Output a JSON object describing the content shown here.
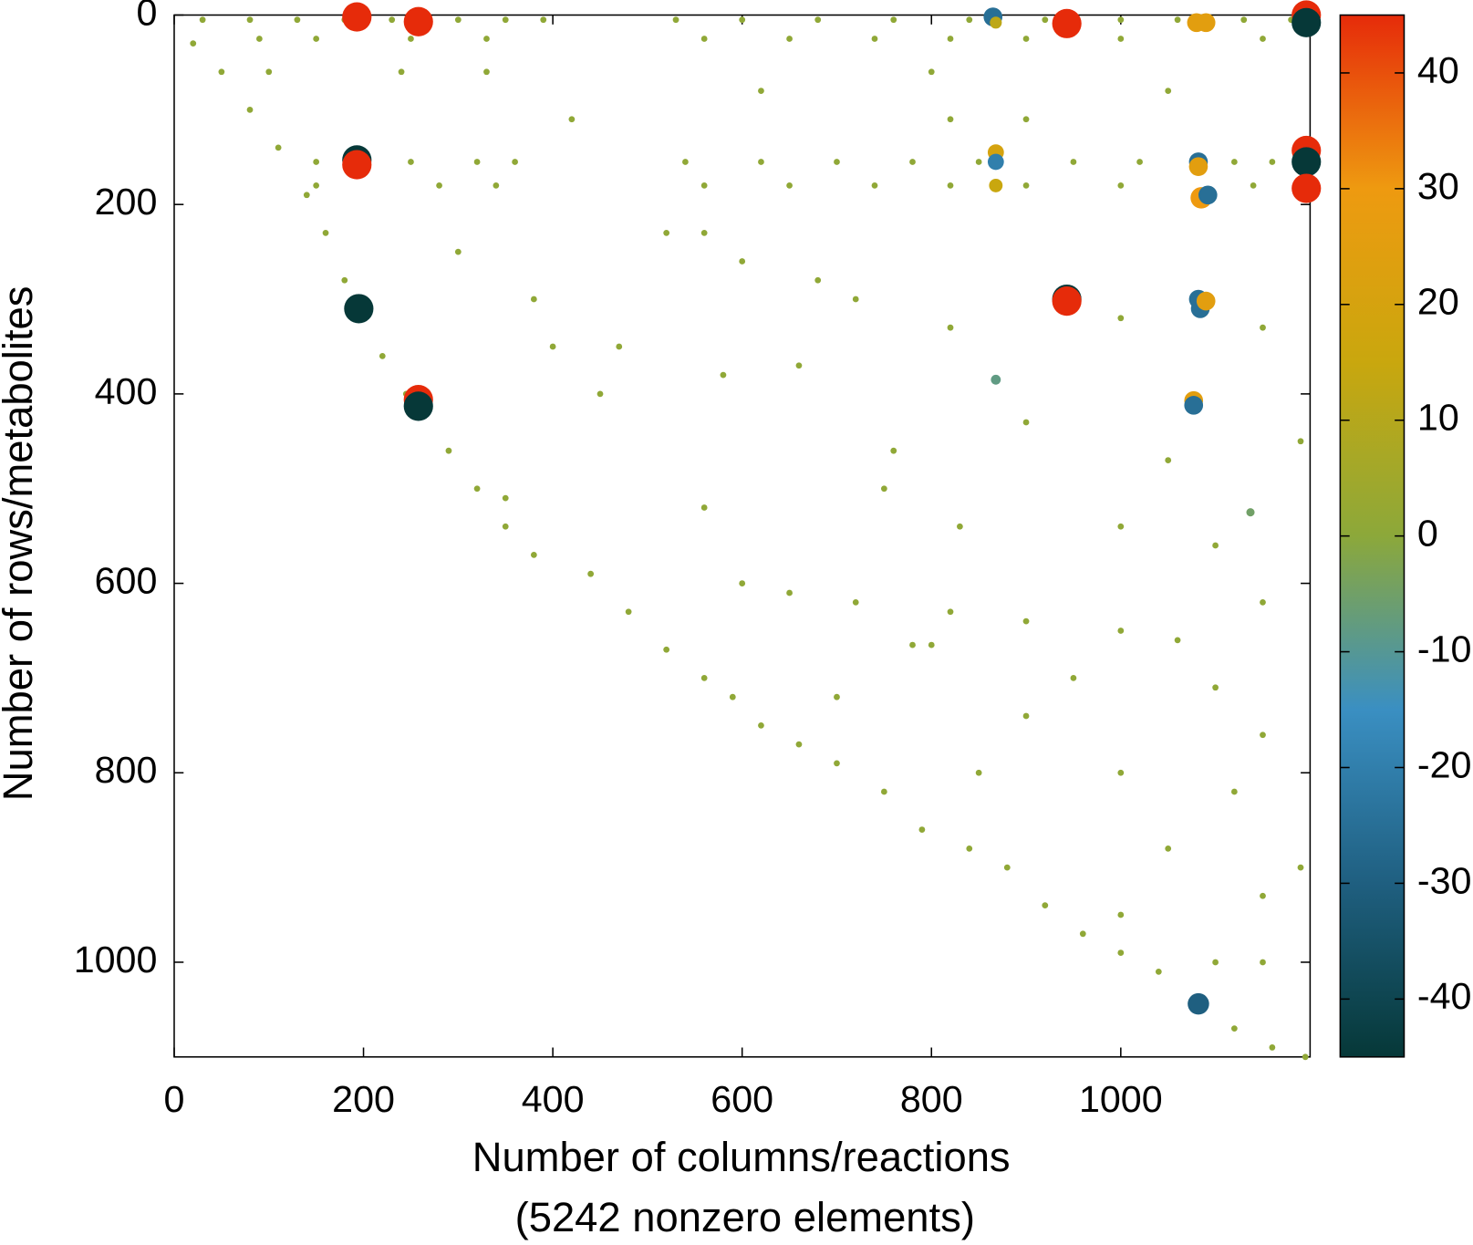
{
  "chart_data": {
    "type": "scatter",
    "xlabel": [
      "Number of columns/reactions",
      "(5242 nonzero elements)"
    ],
    "ylabel": "Number of rows/metabolites",
    "xlim": [
      0,
      1200
    ],
    "ylim": [
      1100,
      0
    ],
    "xticks": [
      0,
      200,
      400,
      600,
      800,
      1000
    ],
    "yticks": [
      0,
      200,
      400,
      600,
      800,
      1000
    ],
    "clim": [
      -45,
      45
    ],
    "cticks": [
      -40,
      -30,
      -20,
      -10,
      0,
      10,
      20,
      30,
      40
    ],
    "colormap": [
      "#063838",
      "#1f5f80",
      "#3a8fc2",
      "#8ca83a",
      "#c9a70e",
      "#ee9a10",
      "#e62b0a"
    ],
    "x": [
      20,
      50,
      80,
      110,
      140,
      160,
      180,
      195,
      220,
      245,
      260,
      290,
      320,
      350,
      380,
      440,
      480,
      520,
      560,
      590,
      620,
      660,
      700,
      750,
      790,
      840,
      880,
      920,
      960,
      1000,
      1040,
      1080,
      1120,
      1160,
      1195,
      30,
      80,
      130,
      180,
      230,
      300,
      350,
      390,
      530,
      600,
      680,
      760,
      840,
      920,
      1000,
      1060,
      1130,
      1180,
      90,
      150,
      250,
      330,
      560,
      650,
      740,
      820,
      900,
      1000,
      1150,
      150,
      250,
      320,
      360,
      540,
      620,
      700,
      780,
      850,
      950,
      1020,
      1120,
      1160,
      150,
      280,
      340,
      560,
      650,
      740,
      820,
      900,
      1000,
      1140,
      100,
      240,
      330,
      620,
      800,
      1050,
      420,
      820,
      900,
      300,
      380,
      600,
      680,
      720,
      820,
      1000,
      1150,
      400,
      580,
      660,
      900,
      1050,
      1190,
      750,
      560,
      830,
      1000,
      1100,
      350,
      600,
      650,
      720,
      820,
      900,
      1000,
      1060,
      1150,
      780,
      800,
      950,
      1100,
      900,
      700,
      1150,
      850,
      1000,
      1120,
      1050,
      1190,
      1000,
      1150,
      1100,
      1150,
      450,
      470,
      520,
      560,
      760,
      193,
      258,
      943,
      1196,
      1196,
      865,
      868,
      1080,
      1090,
      193,
      193,
      868,
      868,
      868,
      1082,
      1082,
      1085,
      1092,
      1196,
      1196,
      1196,
      195,
      258,
      258,
      943,
      943,
      1082,
      1084,
      1090,
      1077,
      1077,
      868,
      1137,
      1082
    ],
    "y": [
      30,
      60,
      100,
      140,
      190,
      230,
      280,
      310,
      360,
      400,
      420,
      460,
      500,
      540,
      570,
      590,
      630,
      670,
      700,
      720,
      750,
      770,
      790,
      820,
      860,
      880,
      900,
      940,
      970,
      990,
      1010,
      1040,
      1070,
      1090,
      1100,
      5,
      5,
      5,
      5,
      5,
      5,
      5,
      5,
      5,
      5,
      5,
      5,
      5,
      5,
      5,
      5,
      5,
      5,
      25,
      25,
      25,
      25,
      25,
      25,
      25,
      25,
      25,
      25,
      25,
      155,
      155,
      155,
      155,
      155,
      155,
      155,
      155,
      155,
      155,
      155,
      155,
      155,
      180,
      180,
      180,
      180,
      180,
      180,
      180,
      180,
      180,
      180,
      60,
      60,
      60,
      80,
      60,
      80,
      110,
      110,
      110,
      250,
      300,
      260,
      280,
      300,
      330,
      320,
      330,
      350,
      380,
      370,
      430,
      470,
      450,
      500,
      520,
      540,
      540,
      560,
      510,
      600,
      610,
      620,
      630,
      640,
      650,
      660,
      620,
      665,
      665,
      700,
      710,
      740,
      720,
      760,
      800,
      800,
      820,
      880,
      900,
      950,
      930,
      1000,
      1000,
      400,
      350,
      230,
      230,
      460,
      2,
      7,
      9,
      0,
      8,
      2,
      8,
      8,
      8,
      153,
      158,
      145,
      155,
      180,
      155,
      160,
      193,
      190,
      143,
      155,
      183,
      310,
      406,
      413,
      300,
      302,
      300,
      310,
      302,
      407,
      412,
      385,
      525,
      1044
    ],
    "values": [
      1,
      1,
      1,
      1,
      1,
      1,
      1,
      1,
      1,
      1,
      1,
      1,
      1,
      1,
      1,
      1,
      1,
      1,
      1,
      1,
      1,
      1,
      1,
      1,
      1,
      1,
      1,
      1,
      1,
      1,
      1,
      1,
      1,
      1,
      1,
      1,
      1,
      1,
      1,
      1,
      1,
      1,
      1,
      1,
      1,
      1,
      1,
      1,
      1,
      1,
      1,
      1,
      1,
      1,
      1,
      1,
      1,
      1,
      1,
      1,
      1,
      1,
      1,
      1,
      1,
      1,
      1,
      1,
      1,
      1,
      1,
      1,
      1,
      1,
      1,
      1,
      1,
      1,
      1,
      1,
      1,
      1,
      1,
      1,
      1,
      1,
      1,
      1,
      1,
      1,
      1,
      1,
      1,
      1,
      1,
      1,
      1,
      1,
      1,
      1,
      1,
      1,
      1,
      1,
      1,
      1,
      1,
      1,
      1,
      1,
      1,
      1,
      1,
      1,
      1,
      1,
      1,
      1,
      1,
      1,
      1,
      1,
      1,
      1,
      1,
      1,
      1,
      1,
      1,
      1,
      1,
      1,
      1,
      1,
      1,
      1,
      1,
      1,
      1,
      1,
      1,
      1,
      1,
      1,
      1,
      45,
      45,
      45,
      45,
      -45,
      -25,
      12,
      25,
      25,
      -45,
      45,
      20,
      -20,
      15,
      -25,
      25,
      30,
      -25,
      45,
      -45,
      45,
      -45,
      45,
      -45,
      -45,
      45,
      -25,
      -25,
      25,
      25,
      -25,
      -8,
      -5,
      -30
    ]
  }
}
